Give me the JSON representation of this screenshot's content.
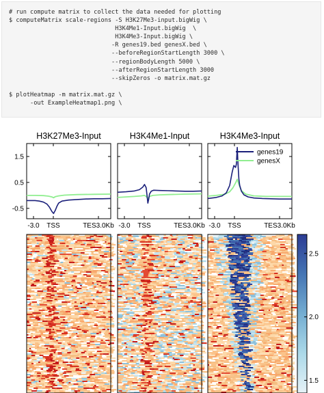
{
  "code": {
    "lines": [
      "# run compute matrix to collect the data needed for plotting",
      "$ computeMatrix scale-regions -S H3K27Me3-input.bigWig \\",
      "                              H3K4Me1-Input.bigWig  \\",
      "                              H3K4Me3-Input.bigWig \\",
      "                             -R genes19.bed genesX.bed \\",
      "                             --beforeRegionStartLength 3000 \\",
      "                             --regionBodyLength 5000 \\",
      "                             --afterRegionStartLength 3000",
      "                             --skipZeros -o matrix.mat.gz",
      "",
      "$ plotHeatmap -m matrix.mat.gz \\",
      "      -out ExampleHeatmap1.png \\"
    ]
  },
  "chart_data": {
    "type": "line",
    "panels": [
      {
        "title": "H3K27Me3-Input",
        "x_ticks": [
          "-3.0",
          "TSS",
          "TES3.0Kb"
        ],
        "y_ticks": [
          1.5,
          0.5,
          -0.5
        ],
        "ylim": [
          -0.9,
          2.0
        ],
        "series": [
          {
            "name": "genes19",
            "color": "#1a1f7a",
            "x": [
              0,
              0.05,
              0.1,
              0.15,
              0.2,
              0.24,
              0.27,
              0.3,
              0.32,
              0.34,
              0.36,
              0.38,
              0.42,
              0.5,
              0.6,
              0.7,
              0.8,
              0.9,
              1.0
            ],
            "y": [
              -0.2,
              -0.2,
              -0.2,
              -0.22,
              -0.26,
              -0.33,
              -0.45,
              -0.62,
              -0.7,
              -0.58,
              -0.42,
              -0.3,
              -0.22,
              -0.18,
              -0.16,
              -0.14,
              -0.13,
              -0.13,
              -0.12
            ]
          },
          {
            "name": "genesX",
            "color": "#90ee90",
            "x": [
              0,
              0.1,
              0.2,
              0.26,
              0.3,
              0.32,
              0.34,
              0.38,
              0.45,
              0.6,
              0.8,
              1.0
            ],
            "y": [
              0.0,
              0.0,
              -0.01,
              -0.03,
              -0.06,
              -0.09,
              -0.05,
              -0.02,
              0.01,
              0.03,
              0.04,
              0.05
            ]
          }
        ]
      },
      {
        "title": "H3K4Me1-Input",
        "x_ticks": [
          "-3.0",
          "TSS",
          "TES3.0Kb"
        ],
        "y_ticks": [
          1.5,
          0.5,
          -0.5
        ],
        "ylim": [
          -0.9,
          2.0
        ],
        "series": [
          {
            "name": "genes19",
            "color": "#1a1f7a",
            "x": [
              0,
              0.1,
              0.2,
              0.26,
              0.3,
              0.32,
              0.34,
              0.35,
              0.36,
              0.37,
              0.38,
              0.4,
              0.43,
              0.5,
              0.6,
              0.7,
              0.8,
              0.9,
              1.0
            ],
            "y": [
              0.12,
              0.14,
              0.17,
              0.22,
              0.32,
              0.42,
              0.3,
              0.0,
              -0.3,
              -0.15,
              0.05,
              0.16,
              0.2,
              0.19,
              0.18,
              0.17,
              0.16,
              0.16,
              0.17
            ]
          },
          {
            "name": "genesX",
            "color": "#90ee90",
            "x": [
              0,
              0.1,
              0.2,
              0.28,
              0.32,
              0.34,
              0.36,
              0.38,
              0.42,
              0.5,
              0.6,
              0.8,
              1.0
            ],
            "y": [
              -0.08,
              -0.06,
              -0.04,
              -0.02,
              0.0,
              -0.04,
              -0.12,
              -0.04,
              0.0,
              0.02,
              0.03,
              0.05,
              0.06
            ]
          }
        ]
      },
      {
        "title": "H3K4Me3-Input",
        "x_ticks": [
          "-3.0",
          "TSS",
          "TES3.0Kb"
        ],
        "y_ticks": [
          1.5,
          0.5,
          -0.5
        ],
        "ylim": [
          -0.9,
          2.0
        ],
        "series": [
          {
            "name": "genes19",
            "color": "#1a1f7a",
            "x": [
              0,
              0.1,
              0.17,
              0.22,
              0.26,
              0.29,
              0.31,
              0.33,
              0.34,
              0.35,
              0.36,
              0.37,
              0.38,
              0.4,
              0.43,
              0.48,
              0.55,
              0.65,
              0.75,
              0.85,
              1.0
            ],
            "y": [
              -0.12,
              -0.08,
              -0.02,
              0.1,
              0.38,
              0.9,
              1.15,
              1.08,
              1.2,
              1.85,
              1.15,
              0.62,
              0.38,
              0.16,
              0.02,
              -0.06,
              -0.1,
              -0.12,
              -0.13,
              -0.14,
              -0.14
            ]
          },
          {
            "name": "genesX",
            "color": "#90ee90",
            "x": [
              0,
              0.1,
              0.2,
              0.26,
              0.3,
              0.33,
              0.35,
              0.37,
              0.4,
              0.45,
              0.55,
              0.7,
              1.0
            ],
            "y": [
              -0.03,
              0.0,
              0.04,
              0.14,
              0.3,
              0.48,
              0.62,
              0.42,
              0.18,
              0.05,
              -0.02,
              -0.04,
              -0.04
            ]
          }
        ]
      }
    ],
    "legend": {
      "placement": "top-right",
      "entries": [
        "genes19",
        "genesX"
      ]
    },
    "heatmap": {
      "type": "heatmap",
      "colorbar_ticks": [
        2.5,
        2.0,
        1.5
      ],
      "color_range": [
        1.4,
        2.65
      ],
      "colormap": [
        "#e6f2f7",
        "#abd9e9",
        "#74add1",
        "#4575b4",
        "#2c3c94"
      ]
    }
  }
}
